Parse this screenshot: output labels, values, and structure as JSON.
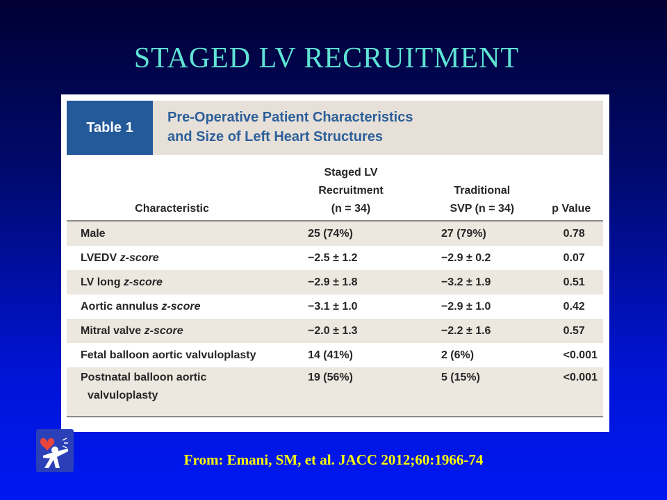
{
  "slide": {
    "title": "STAGED LV RECRUITMENT",
    "citation": "From: Emani, SM, et al. JACC 2012;60:1966-74"
  },
  "table": {
    "number": "Table 1",
    "caption_line1": "Pre-Operative Patient Characteristics",
    "caption_line2": "and Size of Left Heart Structures",
    "headers": {
      "characteristic": "Characteristic",
      "staged_l1": "Staged LV",
      "staged_l2": "Recruitment",
      "staged_l3": "(n = 34)",
      "trad_l1": "Traditional",
      "trad_l2": "SVP (n = 34)",
      "p": "p Value"
    },
    "rows": [
      {
        "label": "Male",
        "staged": "25 (74%)",
        "trad": "27 (79%)",
        "p": "0.78"
      },
      {
        "label_a": "LVEDV ",
        "label_z": "z-score",
        "staged": "−2.5 ± 1.2",
        "trad": "−2.9 ± 0.2",
        "p": "0.07"
      },
      {
        "label_a": "LV long ",
        "label_z": "z-score",
        "staged": "−2.9 ± 1.8",
        "trad": "−3.2 ± 1.9",
        "p": "0.51"
      },
      {
        "label_a": "Aortic annulus ",
        "label_z": "z-score",
        "staged": "−3.1 ± 1.0",
        "trad": "−2.9 ± 1.0",
        "p": "0.42"
      },
      {
        "label_a": "Mitral valve ",
        "label_z": "z-score",
        "staged": "−2.0 ± 1.3",
        "trad": "−2.2 ± 1.6",
        "p": "0.57"
      },
      {
        "label": "Fetal balloon aortic valvuloplasty",
        "staged": "14 (41%)",
        "trad": "2 (6%)",
        "p": "<0.001"
      },
      {
        "label_l1": "Postnatal balloon aortic",
        "label_l2": "valvuloplasty",
        "staged": "19 (56%)",
        "trad": "5 (15%)",
        "p": "<0.001"
      }
    ]
  },
  "logo": {
    "icon": "heart-person-logo-icon",
    "heart_color": "#e8453c",
    "figure_color": "#ffffff"
  }
}
